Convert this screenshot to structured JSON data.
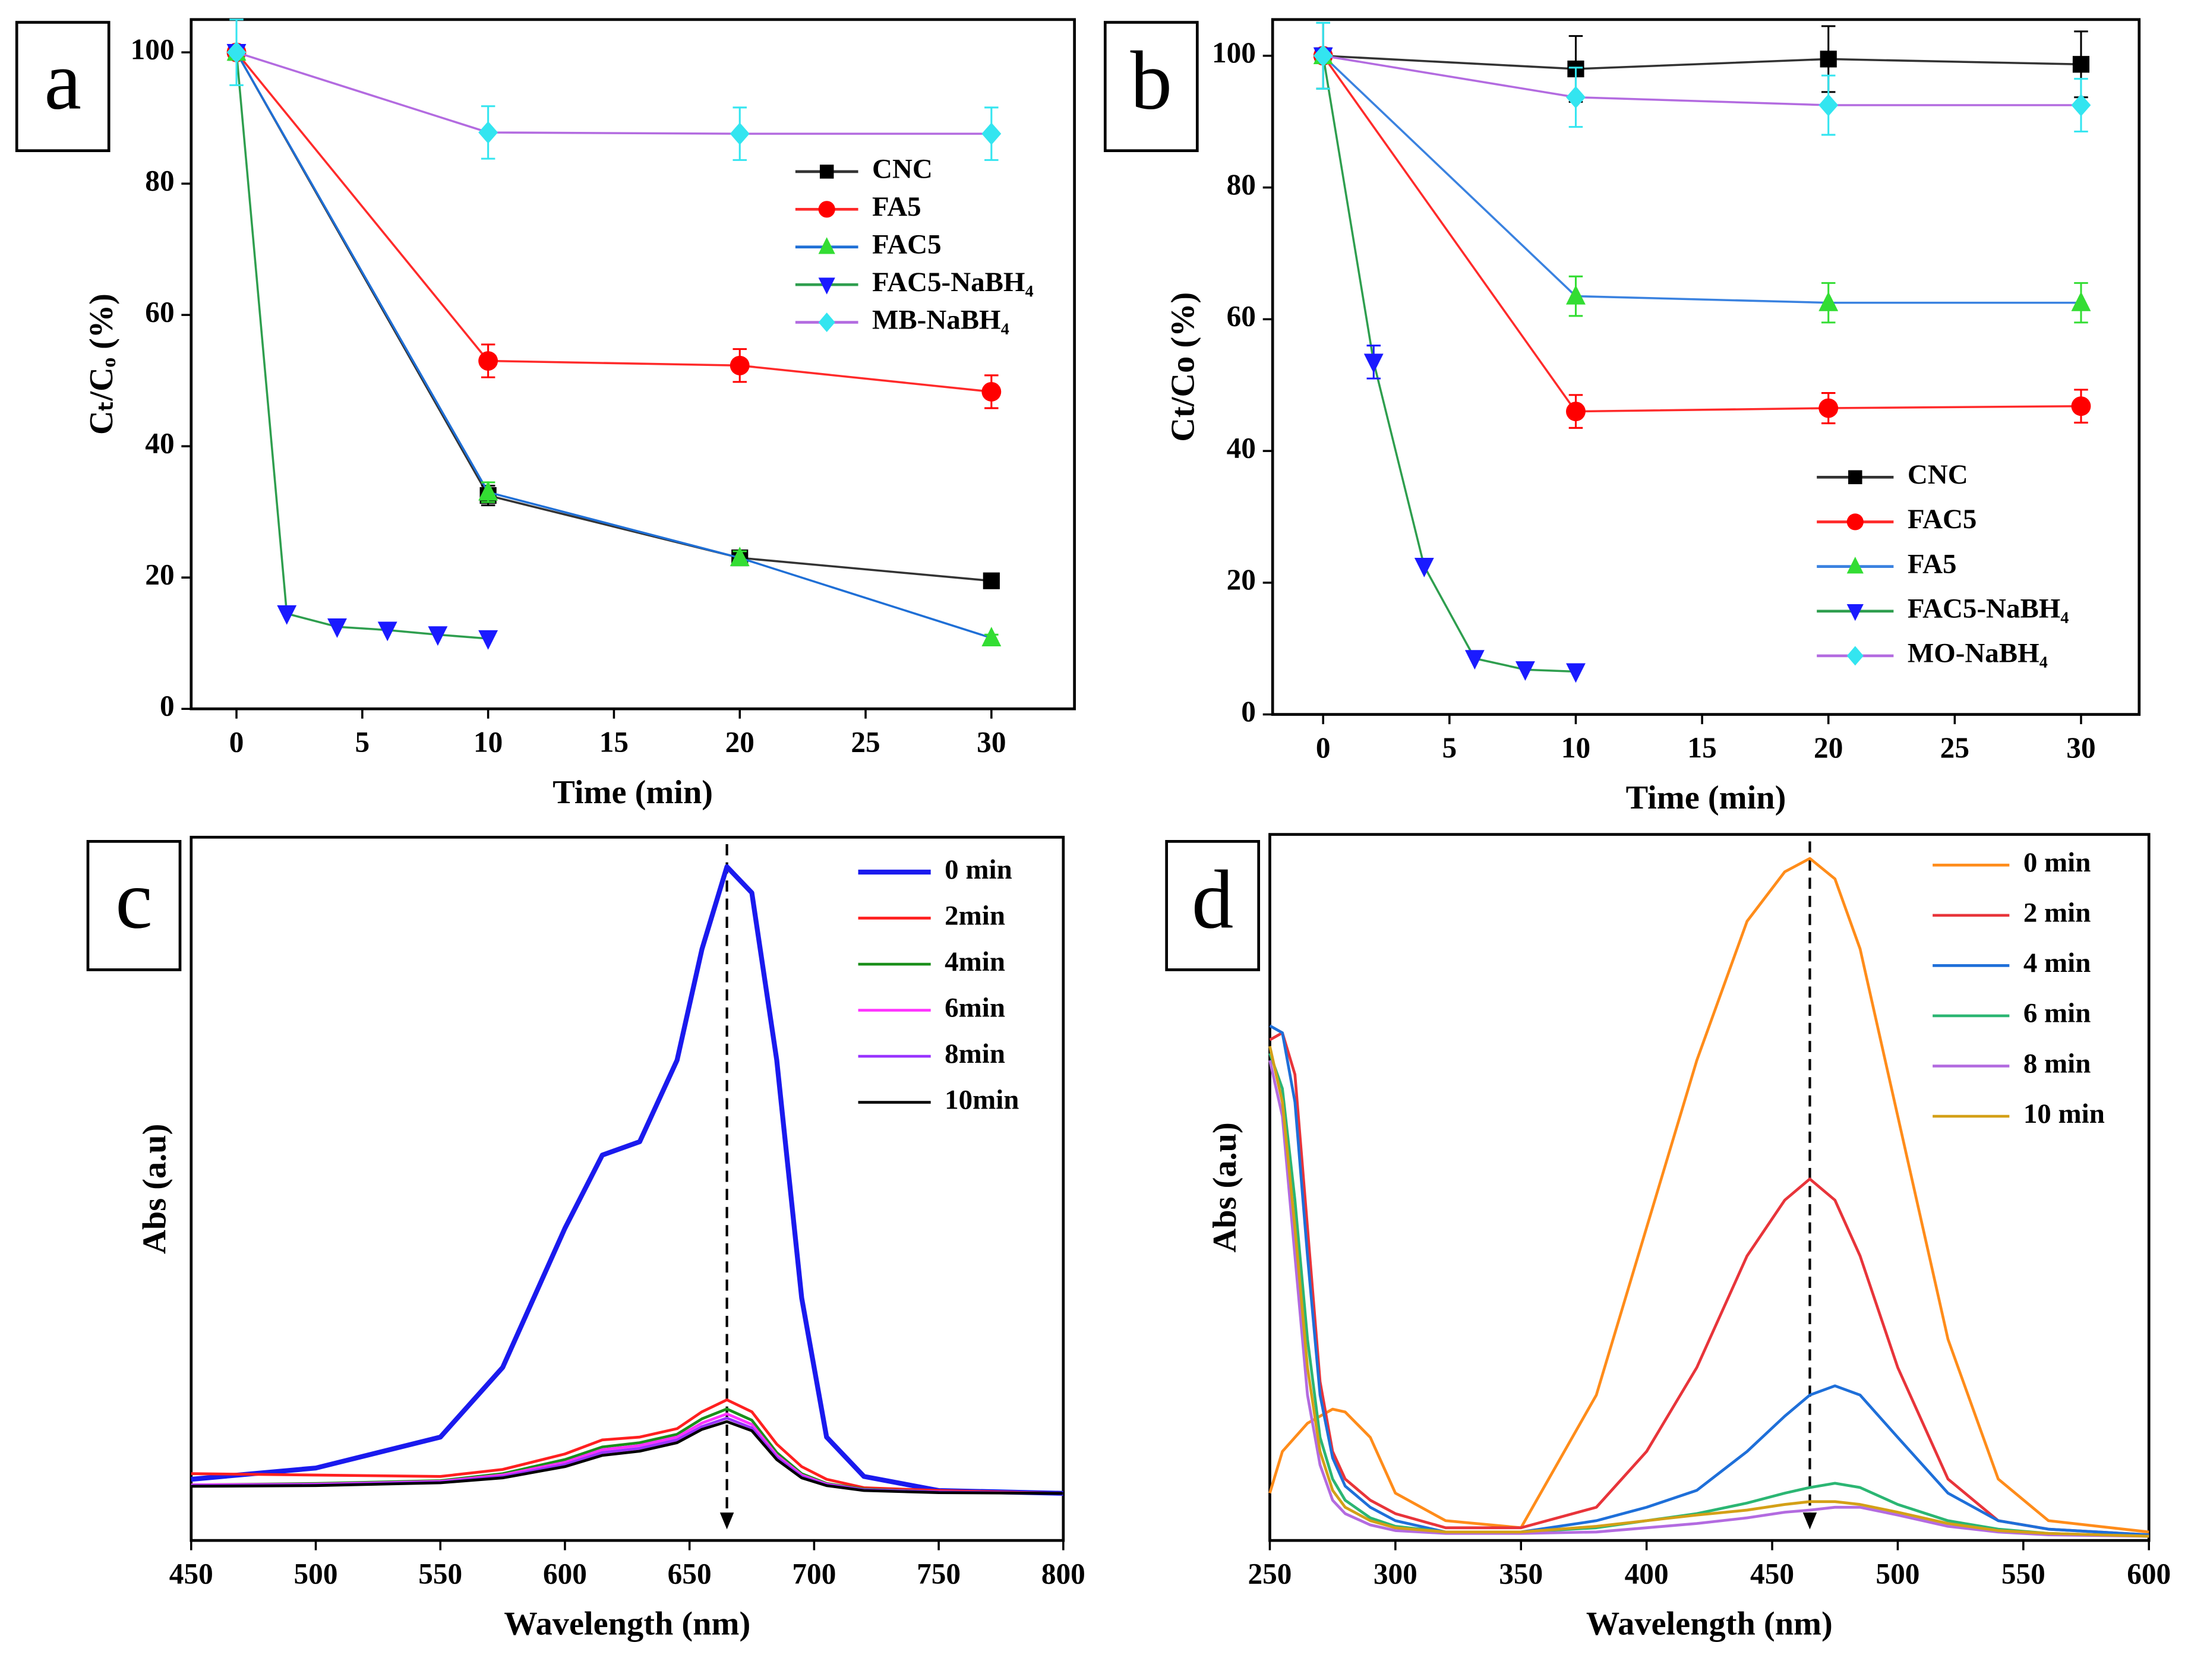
{
  "chart_data": [
    {
      "type": "line",
      "label": "a",
      "xlabel": "Time (min)",
      "ylabel": "Cₜ/Cₒ (%)",
      "xlim": [
        -1.8,
        33.3
      ],
      "ylim": [
        0,
        105
      ],
      "xticks": [
        0,
        5,
        10,
        15,
        20,
        25,
        30
      ],
      "yticks": [
        0,
        20,
        40,
        60,
        80,
        100
      ],
      "series": [
        {
          "name": "CNC",
          "color": "#333333",
          "marker_color": "#000000",
          "marker": "square",
          "x": [
            0,
            10,
            20,
            30
          ],
          "values": [
            100,
            32.5,
            23,
            19.5
          ],
          "errors": [
            0,
            1.5,
            1,
            0.5
          ]
        },
        {
          "name": "FA5",
          "color": "#ff2a2a",
          "marker_color": "#ff0000",
          "marker": "circle",
          "x": [
            0,
            10,
            20,
            30
          ],
          "values": [
            100,
            53,
            52.3,
            48.3
          ],
          "errors": [
            0,
            2.5,
            2.5,
            2.5
          ]
        },
        {
          "name": "FAC5",
          "color": "#1f6fd6",
          "marker_color": "#33dd33",
          "marker": "triangle-up",
          "x": [
            0,
            10,
            20,
            30
          ],
          "values": [
            100,
            33,
            23,
            10.8
          ],
          "errors": [
            0,
            1.5,
            1,
            0.5
          ]
        },
        {
          "name": "FAC5-NaBH₄",
          "color": "#2e9e4e",
          "marker_color": "#1a1aff",
          "marker": "triangle-down",
          "x": [
            0,
            2,
            4,
            6,
            8,
            10
          ],
          "values": [
            100,
            14.5,
            12.5,
            12,
            11.3,
            10.7
          ]
        },
        {
          "name": "MB-NaBH₄",
          "color": "#b36be0",
          "marker_color": "#33e5f0",
          "marker": "diamond",
          "x": [
            0,
            10,
            20,
            30
          ],
          "values": [
            100,
            87.8,
            87.6,
            87.6
          ],
          "errors": [
            5,
            4,
            4,
            4
          ]
        }
      ]
    },
    {
      "type": "line",
      "label": "b",
      "xlabel": "Time (min)",
      "ylabel": "Ct/Co (%)",
      "xlim": [
        -2,
        32.3
      ],
      "ylim": [
        0,
        105.5
      ],
      "xticks": [
        0,
        5,
        10,
        15,
        20,
        25,
        30
      ],
      "yticks": [
        0,
        20,
        40,
        60,
        80,
        100
      ],
      "series": [
        {
          "name": "CNC",
          "color": "#333333",
          "marker_color": "#000000",
          "marker": "square",
          "x": [
            0,
            10,
            20,
            30
          ],
          "values": [
            100,
            98,
            99.5,
            98.7
          ],
          "errors": [
            5,
            5,
            5,
            5
          ]
        },
        {
          "name": "FAC5",
          "color": "#ff2a2a",
          "marker_color": "#ff0000",
          "marker": "circle",
          "x": [
            0,
            10,
            20,
            30
          ],
          "values": [
            100,
            46,
            46.5,
            46.8
          ],
          "errors": [
            0,
            2.5,
            2.3,
            2.5
          ]
        },
        {
          "name": "FA5",
          "color": "#3a82e0",
          "marker_color": "#33dd33",
          "marker": "triangle-up",
          "x": [
            0,
            10,
            20,
            30
          ],
          "values": [
            100,
            63.5,
            62.5,
            62.5
          ],
          "errors": [
            0,
            3,
            3,
            3
          ]
        },
        {
          "name": "FAC5-NaBH₄",
          "color": "#2e9e4e",
          "marker_color": "#1a1aff",
          "marker": "triangle-down",
          "x": [
            0,
            2,
            4,
            6,
            8,
            10
          ],
          "values": [
            100,
            53.5,
            22.5,
            8.5,
            6.8,
            6.5
          ],
          "errors": [
            0,
            2.5,
            0,
            0,
            0,
            0
          ]
        },
        {
          "name": "MO-NaBH₄",
          "color": "#b36be0",
          "marker_color": "#33e5f0",
          "marker": "diamond",
          "x": [
            0,
            10,
            20,
            30
          ],
          "values": [
            100,
            93.7,
            92.5,
            92.5
          ],
          "errors": [
            5,
            4.5,
            4.5,
            4
          ]
        }
      ]
    },
    {
      "type": "line",
      "label": "c",
      "xlabel": "Wavelength (nm)",
      "ylabel": "Abs (a.u)",
      "xlim": [
        450,
        800
      ],
      "ylim": [
        0,
        1
      ],
      "xticks": [
        450,
        500,
        550,
        600,
        650,
        700,
        750,
        800
      ],
      "arrow_x": 665,
      "x": [
        450,
        500,
        550,
        575,
        600,
        615,
        630,
        645,
        655,
        665,
        675,
        685,
        695,
        705,
        720,
        750,
        800
      ],
      "series": [
        {
          "name": "0 min",
          "color": "#1a1aee",
          "width": 3.5,
          "values": [
            0.087,
            0.103,
            0.147,
            0.246,
            0.444,
            0.548,
            0.567,
            0.683,
            0.841,
            0.958,
            0.921,
            0.683,
            0.345,
            0.147,
            0.091,
            0.071,
            0.067
          ]
        },
        {
          "name": "2min",
          "color": "#ff2020",
          "values": [
            0.095,
            0.093,
            0.091,
            0.101,
            0.123,
            0.143,
            0.147,
            0.159,
            0.183,
            0.2,
            0.183,
            0.137,
            0.105,
            0.087,
            0.075,
            0.071,
            0.067
          ]
        },
        {
          "name": "4min",
          "color": "#1a8f1a",
          "values": [
            0.079,
            0.081,
            0.085,
            0.095,
            0.115,
            0.133,
            0.139,
            0.151,
            0.173,
            0.187,
            0.171,
            0.125,
            0.095,
            0.081,
            0.073,
            0.069,
            0.067
          ]
        },
        {
          "name": "6min",
          "color": "#ff33ff",
          "values": [
            0.079,
            0.08,
            0.084,
            0.093,
            0.111,
            0.129,
            0.135,
            0.147,
            0.167,
            0.18,
            0.165,
            0.121,
            0.093,
            0.08,
            0.072,
            0.069,
            0.067
          ]
        },
        {
          "name": "8min",
          "color": "#9933ff",
          "values": [
            0.078,
            0.079,
            0.083,
            0.091,
            0.108,
            0.125,
            0.131,
            0.143,
            0.162,
            0.174,
            0.16,
            0.118,
            0.091,
            0.079,
            0.072,
            0.069,
            0.067
          ]
        },
        {
          "name": "10min",
          "color": "#000000",
          "values": [
            0.077,
            0.078,
            0.082,
            0.089,
            0.105,
            0.121,
            0.127,
            0.139,
            0.158,
            0.169,
            0.156,
            0.115,
            0.089,
            0.078,
            0.071,
            0.068,
            0.067
          ]
        }
      ]
    },
    {
      "type": "line",
      "label": "d",
      "xlabel": "Wavelength (nm)",
      "ylabel": "Abs (a.u)",
      "xlim": [
        250,
        600
      ],
      "ylim": [
        0,
        1
      ],
      "xticks": [
        250,
        300,
        350,
        400,
        450,
        500,
        550,
        600
      ],
      "arrow_x": 465,
      "x": [
        250,
        255,
        260,
        265,
        270,
        275,
        280,
        290,
        300,
        320,
        350,
        380,
        400,
        420,
        440,
        455,
        465,
        475,
        485,
        500,
        520,
        540,
        560,
        600
      ],
      "series": [
        {
          "name": "0 min",
          "color": "#ff8c1a",
          "values": [
            0.067,
            0.126,
            0.146,
            0.166,
            0.176,
            0.186,
            0.182,
            0.146,
            0.067,
            0.028,
            0.018,
            0.206,
            0.443,
            0.68,
            0.877,
            0.947,
            0.966,
            0.937,
            0.838,
            0.601,
            0.285,
            0.087,
            0.028,
            0.012
          ]
        },
        {
          "name": "2 min",
          "color": "#e8343a",
          "values": [
            0.709,
            0.719,
            0.66,
            0.443,
            0.225,
            0.126,
            0.087,
            0.057,
            0.038,
            0.018,
            0.018,
            0.047,
            0.126,
            0.245,
            0.403,
            0.482,
            0.512,
            0.482,
            0.403,
            0.245,
            0.087,
            0.028,
            0.016,
            0.008
          ]
        },
        {
          "name": "4 min",
          "color": "#1e6fd9",
          "values": [
            0.729,
            0.719,
            0.621,
            0.403,
            0.206,
            0.117,
            0.077,
            0.047,
            0.028,
            0.012,
            0.012,
            0.028,
            0.047,
            0.071,
            0.126,
            0.176,
            0.206,
            0.219,
            0.206,
            0.146,
            0.067,
            0.028,
            0.016,
            0.008
          ]
        },
        {
          "name": "6 min",
          "color": "#2bb673",
          "values": [
            0.69,
            0.64,
            0.482,
            0.285,
            0.146,
            0.087,
            0.057,
            0.032,
            0.02,
            0.012,
            0.012,
            0.018,
            0.028,
            0.038,
            0.053,
            0.067,
            0.075,
            0.081,
            0.075,
            0.051,
            0.028,
            0.016,
            0.01,
            0.006
          ]
        },
        {
          "name": "8 min",
          "color": "#b36be0",
          "values": [
            0.68,
            0.601,
            0.403,
            0.206,
            0.107,
            0.057,
            0.038,
            0.022,
            0.014,
            0.01,
            0.01,
            0.012,
            0.018,
            0.024,
            0.032,
            0.04,
            0.043,
            0.047,
            0.047,
            0.036,
            0.02,
            0.012,
            0.008,
            0.006
          ]
        },
        {
          "name": "10 min",
          "color": "#d4a017",
          "values": [
            0.7,
            0.621,
            0.443,
            0.245,
            0.126,
            0.071,
            0.047,
            0.028,
            0.018,
            0.012,
            0.012,
            0.02,
            0.028,
            0.036,
            0.043,
            0.051,
            0.055,
            0.055,
            0.051,
            0.04,
            0.024,
            0.014,
            0.01,
            0.006
          ]
        }
      ]
    }
  ]
}
